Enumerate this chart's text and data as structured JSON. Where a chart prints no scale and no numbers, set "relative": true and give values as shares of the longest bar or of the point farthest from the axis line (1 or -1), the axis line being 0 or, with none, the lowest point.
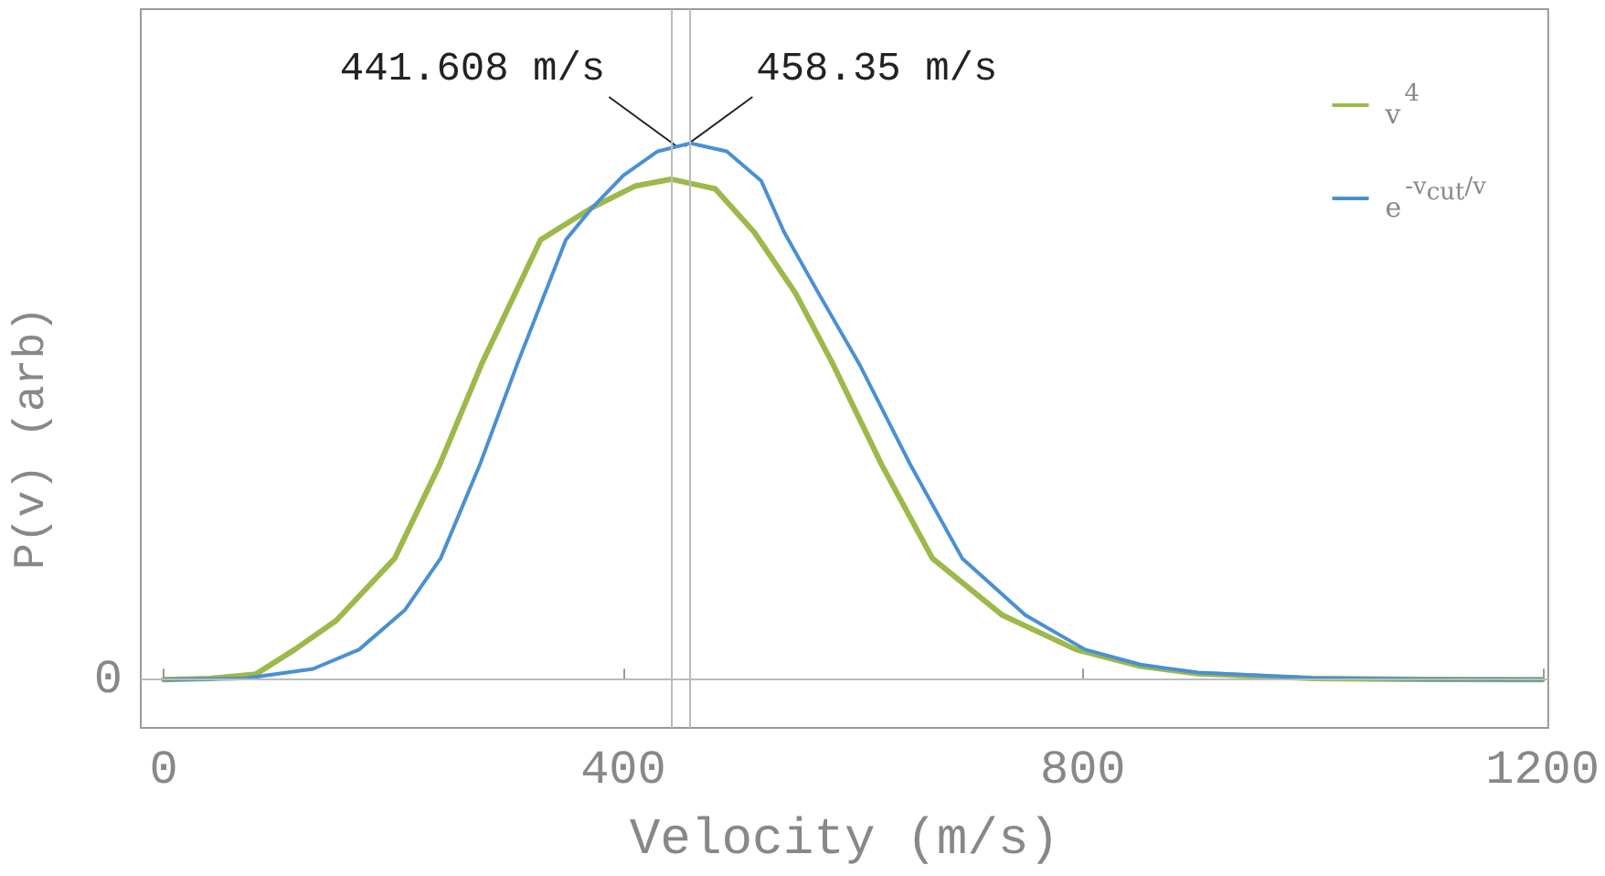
{
  "chart_data": {
    "type": "line",
    "xlabel": "Velocity (m/s)",
    "ylabel": "P(v) (arb)",
    "relative": true,
    "xlim": [
      -20,
      1205
    ],
    "xticks": [
      0,
      400,
      800,
      1200
    ],
    "grid": false,
    "marker": "none",
    "line_style": "solid",
    "legend": "top right",
    "series": [
      {
        "name": "v$^{4}$",
        "color": "#9cb94a",
        "x": [
          0,
          40,
          80,
          114,
          150,
          201,
          240,
          277,
          328,
          373,
          410,
          441.608,
          480,
          514,
          550,
          582,
          625,
          669,
          730,
          794,
          850,
          900,
          1000,
          1100,
          1200
        ],
        "values": [
          0,
          0.002,
          0.01,
          0.056,
          0.11,
          0.226,
          0.4,
          0.59,
          0.82,
          0.88,
          0.92,
          0.933,
          0.915,
          0.834,
          0.72,
          0.59,
          0.4,
          0.226,
          0.12,
          0.056,
          0.025,
          0.011,
          0.002,
          0.0003,
          0
        ]
      },
      {
        "name": "e$^{-v}$$_{cut}$$^{/v}$",
        "color": "#4a90d2",
        "x": [
          0,
          70,
          130,
          170,
          210,
          241,
          275,
          308,
          350,
          373,
          400,
          430,
          458.35,
          490,
          520,
          540,
          570,
          605,
          650,
          695,
          750,
          802,
          850,
          900,
          1000,
          1100,
          1200
        ],
        "values": [
          0,
          0.002,
          0.02,
          0.056,
          0.13,
          0.226,
          0.4,
          0.59,
          0.82,
          0.88,
          0.94,
          0.985,
          1,
          0.985,
          0.93,
          0.834,
          0.72,
          0.59,
          0.4,
          0.226,
          0.12,
          0.056,
          0.028,
          0.013,
          0.003,
          0.0005,
          0
        ]
      }
    ],
    "ref_lines": [
      {
        "axis": "x",
        "value": 441.608,
        "label": "441.608 m/s",
        "color": "#bbbbbb"
      },
      {
        "axis": "x",
        "value": 458.35,
        "label": "458.35 m/s",
        "color": "#bbbbbb"
      },
      {
        "axis": "y",
        "value": 0,
        "label": "0",
        "color": "#bbbbbb"
      }
    ]
  }
}
